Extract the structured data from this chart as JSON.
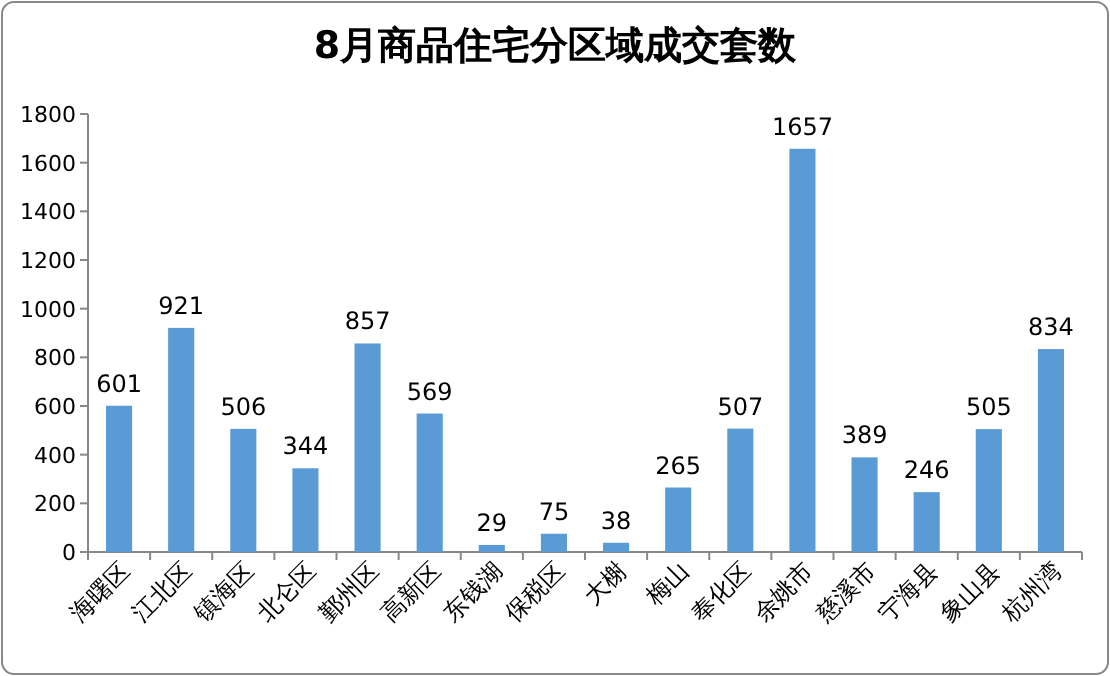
{
  "chart_data": {
    "type": "bar",
    "title": "8月商品住宅分区域成交套数",
    "categories": [
      "海曙区",
      "江北区",
      "镇海区",
      "北仑区",
      "鄞州区",
      "高新区",
      "东钱湖",
      "保税区",
      "大榭",
      "梅山",
      "奉化区",
      "余姚市",
      "慈溪市",
      "宁海县",
      "象山县",
      "杭州湾"
    ],
    "values": [
      601,
      921,
      506,
      344,
      857,
      569,
      29,
      75,
      38,
      265,
      507,
      1657,
      389,
      246,
      505,
      834
    ],
    "color": "#5b9bd5",
    "ylim": [
      0,
      1800
    ],
    "yticks": [
      0,
      200,
      400,
      600,
      800,
      1000,
      1200,
      1400,
      1600,
      1800
    ],
    "data_labels": true,
    "grid": false
  }
}
